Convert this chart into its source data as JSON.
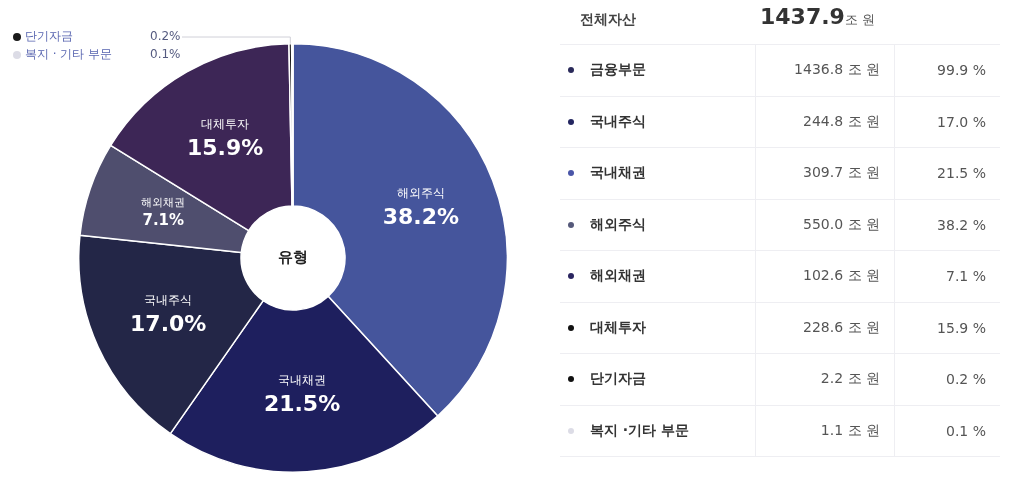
{
  "chart_data": [
    {
      "type": "donut",
      "categories": [
        "해외주식",
        "국내채권",
        "국내주식",
        "해외채권",
        "대체투자",
        "단기자금",
        "복지 · 기타 부문"
      ],
      "values": [
        38.2,
        21.5,
        17.0,
        7.1,
        15.9,
        0.2,
        0.1
      ],
      "colors": [
        "#45559c",
        "#1e1f5e",
        "#232647",
        "#4f4e6e",
        "#3d2656",
        "#1a1a1a",
        "#dcdce6"
      ],
      "value_labels": [
        "38.2%",
        "21.5%",
        "17.0%",
        "7.1%",
        "15.9%",
        "0.2%",
        "0.1%"
      ],
      "legend": "top left",
      "annotations": [
        "유형"
      ]
    },
    {
      "type": "other",
      "title": "전체자산",
      "subtitle": "1437.9조 원",
      "categories": [
        "금융부문",
        "국내주식",
        "국내채권",
        "해외주식",
        "해외채권",
        "대체투자",
        "단기자금",
        "복지 ·기타 부문"
      ],
      "colors": [
        "#2a2a5a",
        "#232660",
        "#4a56a8",
        "#55597a",
        "#2a2560",
        "#111111",
        "#111111",
        "#dcdce6"
      ],
      "series": [
        {
          "values": [
            1436.8,
            244.8,
            309.7,
            550.0,
            102.6,
            228.6,
            2.2,
            1.1
          ],
          "value_labels": [
            "1436.8 조 원",
            "244.8 조 원",
            "309.7 조 원",
            "550.0 조 원",
            "102.6 조 원",
            "228.6 조 원",
            "2.2 조 원",
            "1.1 조 원"
          ]
        },
        {
          "values": [
            99.9,
            17.0,
            21.5,
            38.2,
            7.1,
            15.9,
            0.2,
            0.1
          ],
          "value_labels": [
            "99.9 %",
            "17.0 %",
            "21.5 %",
            "38.2 %",
            "7.1 %",
            "15.9 %",
            "0.2 %",
            "0.1 %"
          ]
        }
      ]
    }
  ]
}
